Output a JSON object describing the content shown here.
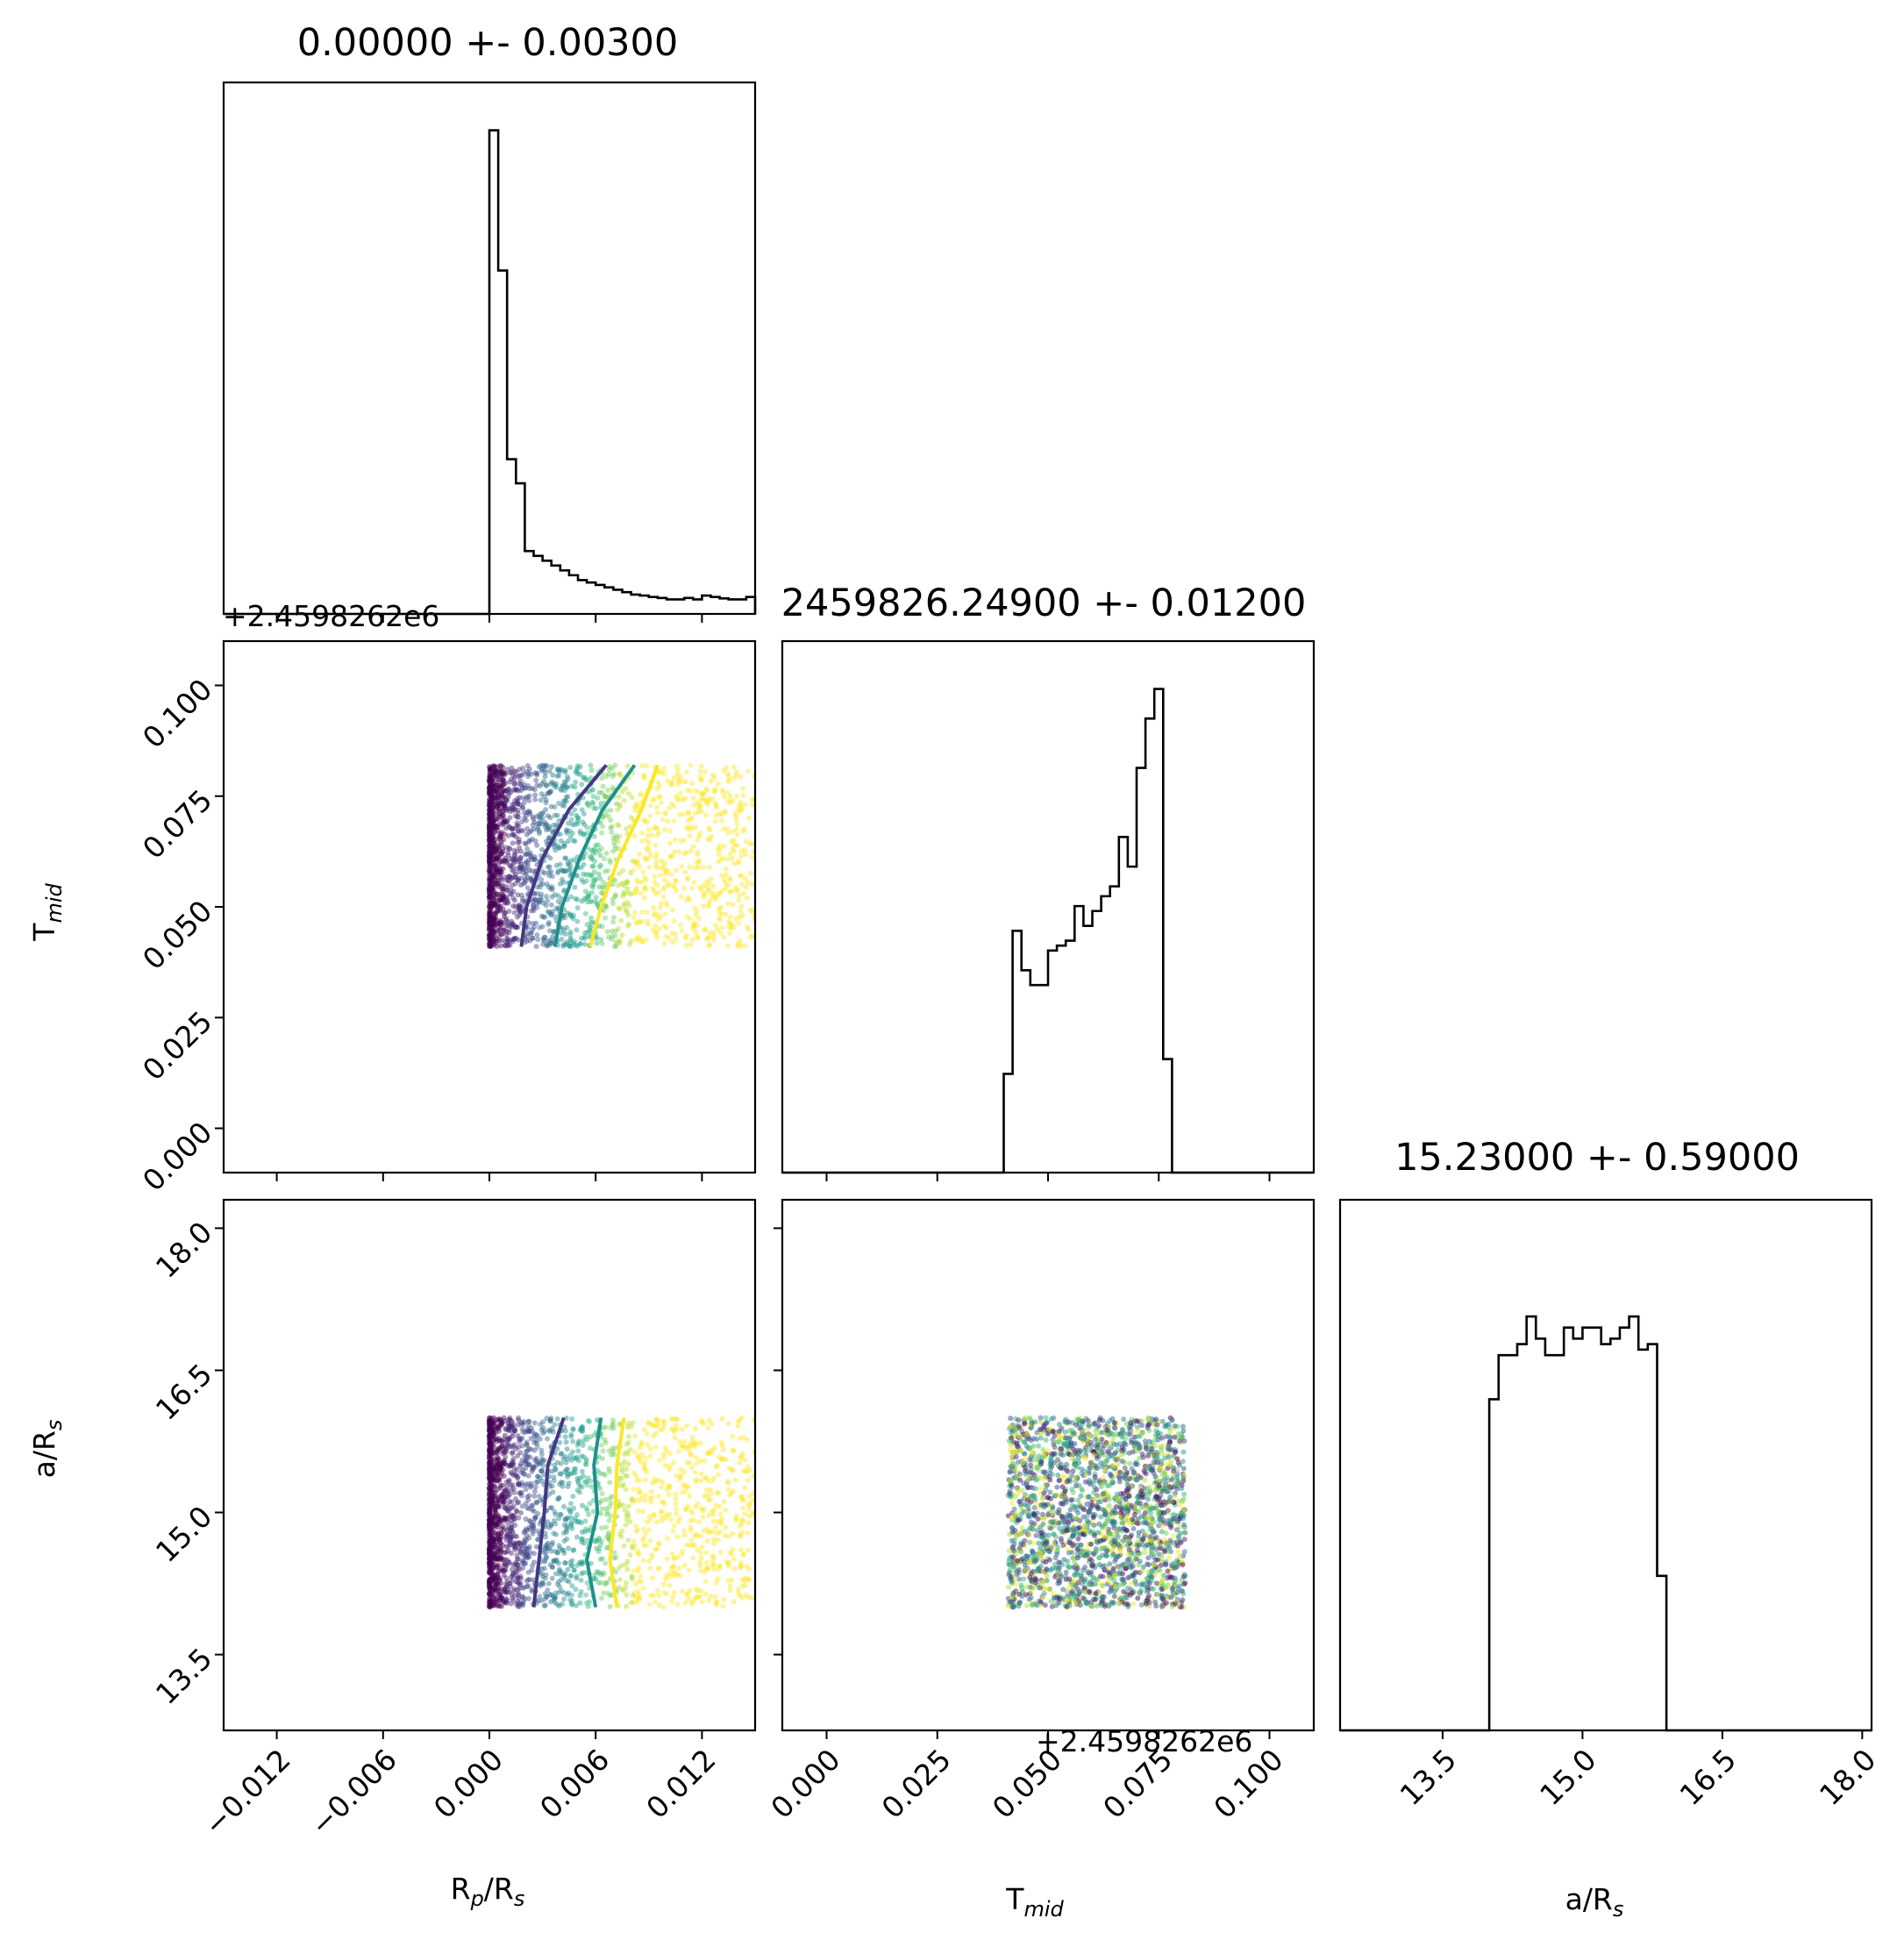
{
  "chart_data": [
    {
      "type": "histogram",
      "parameter": "R_p/R_s",
      "title": "0.00000 +- 0.00300",
      "xlim": [
        -0.015,
        0.015
      ],
      "bin_edges_start": 0.0,
      "bin_width": 0.0005,
      "counts": [
        100,
        71,
        32,
        27,
        13,
        12,
        11,
        10,
        9,
        8,
        7,
        6.5,
        6,
        5.5,
        5,
        4.5,
        4,
        3.8,
        3.5,
        3.3,
        3,
        3,
        3.3,
        3,
        3.8,
        3.5,
        3.2,
        3,
        3,
        3.5
      ]
    },
    {
      "type": "scatter",
      "x": "R_p/R_s",
      "y": "T_mid",
      "xlim": [
        -0.015,
        0.015
      ],
      "ylim": [
        -0.01,
        0.11
      ],
      "y_offset_text": "+2.4598262e6",
      "points": {
        "x_range": [
          0.0,
          0.015
        ],
        "y_range": [
          0.041,
          0.082
        ],
        "colormap": "viridis"
      },
      "contours": [
        {
          "color": "#453781",
          "x": [
            0.0018,
            0.0021,
            0.003,
            0.0045,
            0.0066
          ],
          "y": [
            0.041,
            0.05,
            0.061,
            0.072,
            0.082
          ]
        },
        {
          "color": "#21908d",
          "x": [
            0.0037,
            0.0041,
            0.0051,
            0.0064,
            0.0082
          ],
          "y": [
            0.041,
            0.05,
            0.061,
            0.072,
            0.082
          ]
        },
        {
          "color": "#fde725",
          "x": [
            0.0057,
            0.0063,
            0.0073,
            0.0086,
            0.0095
          ],
          "y": [
            0.041,
            0.05,
            0.061,
            0.072,
            0.082
          ]
        }
      ]
    },
    {
      "type": "histogram",
      "parameter": "T_mid",
      "title": "2459826.24900 +- 0.01200",
      "xlim": [
        -0.01,
        0.11
      ],
      "bin_edges_start": 0.04,
      "bin_width": 0.002,
      "counts": [
        0.2,
        0.49,
        0.41,
        0.38,
        0.38,
        0.45,
        0.46,
        0.47,
        0.54,
        0.5,
        0.53,
        0.56,
        0.58,
        0.68,
        0.62,
        0.82,
        0.92,
        0.98,
        0.23
      ]
    },
    {
      "type": "scatter",
      "x": "R_p/R_s",
      "y": "a/R_s",
      "xlim": [
        -0.015,
        0.015
      ],
      "ylim": [
        12.7,
        18.3
      ],
      "points": {
        "x_range": [
          0.0,
          0.015
        ],
        "y_range": [
          14.0,
          16.0
        ],
        "colormap": "viridis"
      },
      "contours": [
        {
          "color": "#453781",
          "x": [
            0.0025,
            0.0028,
            0.0031,
            0.0033,
            0.0042
          ],
          "y": [
            14.0,
            14.5,
            15.0,
            15.5,
            16.0
          ]
        },
        {
          "color": "#21908d",
          "x": [
            0.006,
            0.0055,
            0.0061,
            0.0059,
            0.0063
          ],
          "y": [
            14.0,
            14.5,
            15.0,
            15.5,
            16.0
          ]
        },
        {
          "color": "#fde725",
          "x": [
            0.0072,
            0.0068,
            0.0071,
            0.0072,
            0.0076
          ],
          "y": [
            14.0,
            14.5,
            15.0,
            15.5,
            16.0
          ]
        }
      ]
    },
    {
      "type": "scatter",
      "x": "T_mid",
      "y": "a/R_s",
      "xlim": [
        -0.01,
        0.11
      ],
      "ylim": [
        12.7,
        18.3
      ],
      "x_offset_text": "+2.4598262e6",
      "points": {
        "x_range": [
          0.041,
          0.081
        ],
        "y_range": [
          14.0,
          16.0
        ],
        "colormap": "viridis"
      }
    },
    {
      "type": "histogram",
      "parameter": "a/R_s",
      "title": "15.23000 +- 0.59000",
      "xlim": [
        12.4,
        18.1
      ],
      "bin_edges_start": 14.0,
      "bin_width": 0.1,
      "counts": [
        0.6,
        0.68,
        0.68,
        0.7,
        0.75,
        0.71,
        0.68,
        0.68,
        0.73,
        0.71,
        0.73,
        0.73,
        0.7,
        0.71,
        0.73,
        0.75,
        0.69,
        0.7,
        0.28
      ]
    }
  ],
  "axes": {
    "rp_label": "R",
    "rp_label_sub": "p",
    "rp_label_rest": "/R",
    "rp_label_sub2": "s",
    "tmid_label": "T",
    "tmid_label_sub": "mid",
    "ars_label": "a/R",
    "ars_label_sub": "s",
    "offset_text": "+2.4598262e6",
    "rp_ticks": [
      "−0.012",
      "−0.006",
      "0.000",
      "0.006",
      "0.012"
    ],
    "tmid_ticks": [
      "0.000",
      "0.025",
      "0.050",
      "0.075",
      "0.100"
    ],
    "ars_ticks": [
      "13.5",
      "15.0",
      "16.5",
      "18.0"
    ]
  },
  "colors": {
    "axis": "#000000",
    "hist": "#000000",
    "colormap": "viridis"
  }
}
